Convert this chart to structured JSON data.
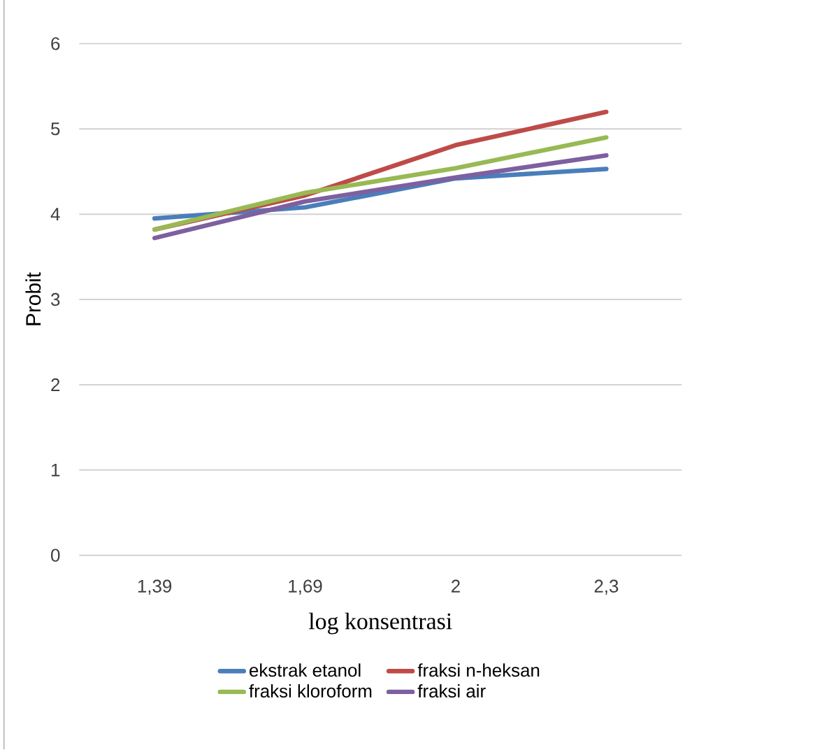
{
  "chart_data": {
    "type": "line",
    "xlabel": "log konsentrasi",
    "ylabel": "Probit",
    "categories": [
      "1,39",
      "1,69",
      "2",
      "2,3"
    ],
    "series": [
      {
        "name": "ekstrak etanol",
        "color": "#4a7ebb",
        "values": [
          3.95,
          4.08,
          4.42,
          4.53
        ]
      },
      {
        "name": "fraksi n-heksan",
        "color": "#be4b48",
        "values": [
          3.82,
          4.22,
          4.81,
          5.2
        ]
      },
      {
        "name": "fraksi kloroform",
        "color": "#98b954",
        "values": [
          3.82,
          4.25,
          4.54,
          4.9
        ]
      },
      {
        "name": "fraksi air",
        "color": "#7d60a0",
        "values": [
          3.72,
          4.15,
          4.43,
          4.69
        ]
      }
    ],
    "ylim": [
      0,
      6
    ],
    "yticks": [
      0,
      1,
      2,
      3,
      4,
      5,
      6
    ],
    "grid": "y",
    "legend": "bottom",
    "marker": "none",
    "line_style": "solid"
  }
}
